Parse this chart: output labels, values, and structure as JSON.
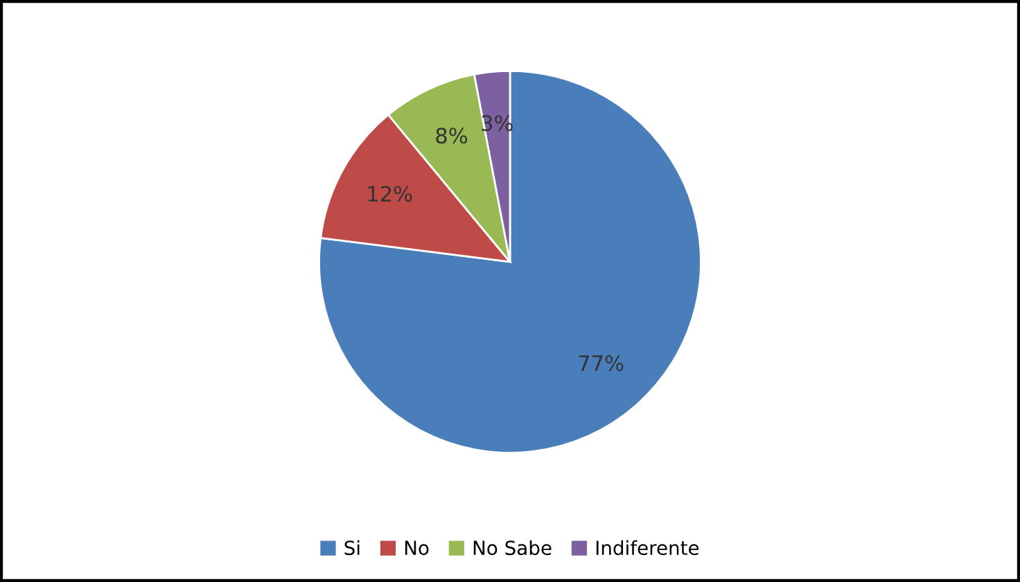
{
  "chart_data": {
    "type": "pie",
    "categories": [
      "Si",
      "No",
      "No Sabe",
      "Indiferente"
    ],
    "values": [
      77,
      12,
      8,
      3
    ],
    "colors": [
      "#4a7ebb",
      "#be4b48",
      "#98b954",
      "#7d60a0"
    ],
    "value_labels": [
      "77%",
      "12%",
      "8%",
      "3%"
    ],
    "legend": "bottom"
  }
}
